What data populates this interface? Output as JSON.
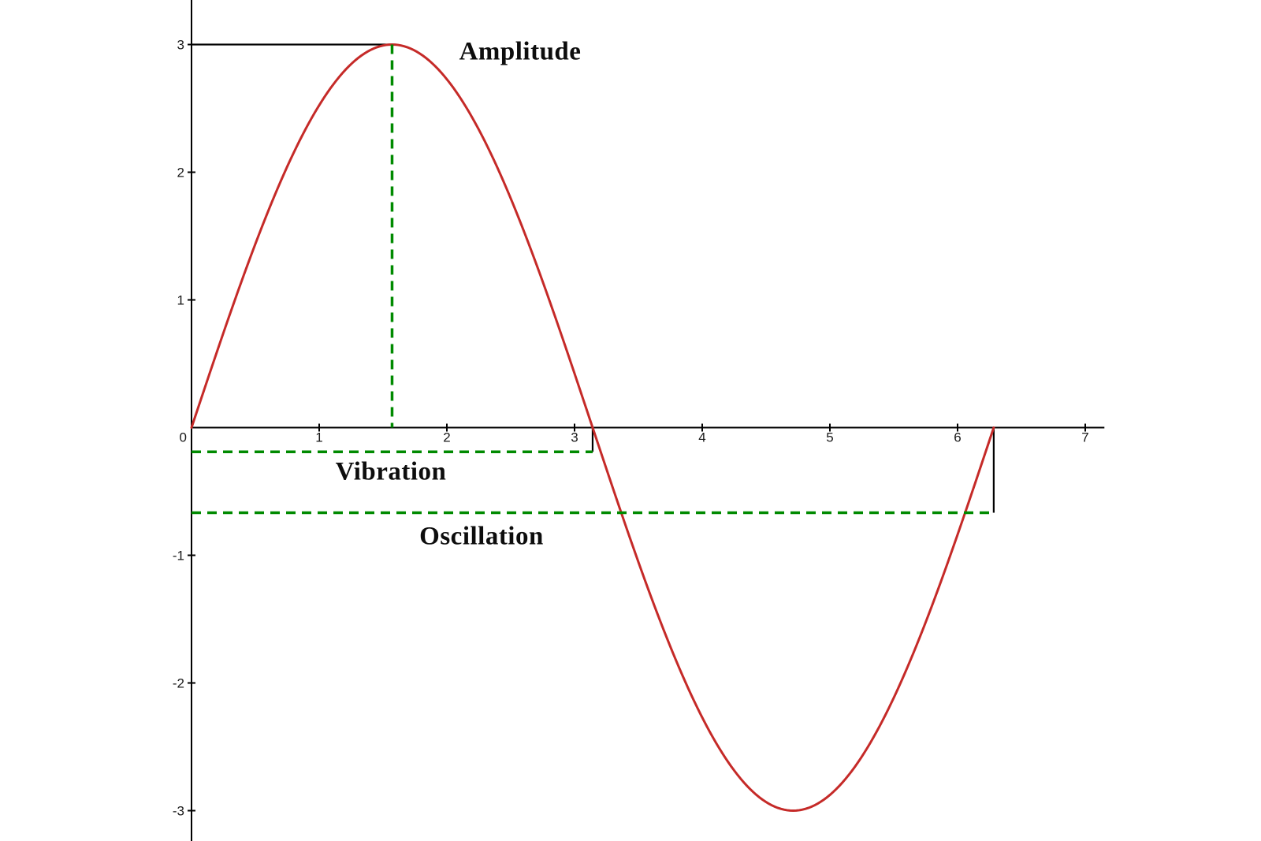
{
  "chart_data": {
    "type": "line",
    "title": "",
    "xlabel": "",
    "ylabel": "",
    "grid": false,
    "legend": "none",
    "xlim": [
      0,
      7.15
    ],
    "ylim": [
      -3.35,
      3.35
    ],
    "x_ticks": [
      1,
      2,
      3,
      4,
      5,
      6,
      7
    ],
    "y_ticks": [
      3,
      2,
      1,
      -1,
      -2,
      -3
    ],
    "origin_label": "0",
    "series": [
      {
        "name": "sine-wave",
        "shape": "sine",
        "amplitude": 3,
        "period": 6.28319,
        "x_start": 0,
        "x_end": 6.28319,
        "key_points": [
          {
            "x": 0,
            "y": 0
          },
          {
            "x": 1.5708,
            "y": 3
          },
          {
            "x": 3.14159,
            "y": 0
          },
          {
            "x": 4.71239,
            "y": -3
          },
          {
            "x": 6.28319,
            "y": 0
          }
        ],
        "color": "#C52A28"
      }
    ],
    "labels": {
      "amplitude": "Amplitude",
      "vibration": "Vibration",
      "oscillation": "Oscillation"
    },
    "guides": [
      {
        "name": "peak-level-line",
        "style": "black-solid",
        "from": [
          0,
          3
        ],
        "to": [
          1.5708,
          3
        ]
      },
      {
        "name": "amplitude-dashed-line",
        "style": "green-dashed",
        "from": [
          1.5708,
          3
        ],
        "to": [
          1.5708,
          0
        ]
      },
      {
        "name": "vibration-dashed-line",
        "style": "green-dashed",
        "from": [
          0,
          -0.19
        ],
        "to": [
          3.14159,
          -0.19
        ]
      },
      {
        "name": "vibration-end-drop",
        "style": "black-solid",
        "from": [
          3.14159,
          0
        ],
        "to": [
          3.14159,
          -0.19
        ]
      },
      {
        "name": "oscillation-dashed-line",
        "style": "green-dashed",
        "from": [
          0,
          -0.667
        ],
        "to": [
          6.28319,
          -0.667
        ]
      },
      {
        "name": "oscillation-end-drop",
        "style": "black-solid",
        "from": [
          6.28319,
          0
        ],
        "to": [
          6.28319,
          -0.667
        ]
      }
    ],
    "colors": {
      "curve": "#C52A28",
      "guide_green": "#008A00",
      "guide_black": "#000000",
      "axis": "#000000",
      "tick_text": "#1a1a1a"
    }
  }
}
